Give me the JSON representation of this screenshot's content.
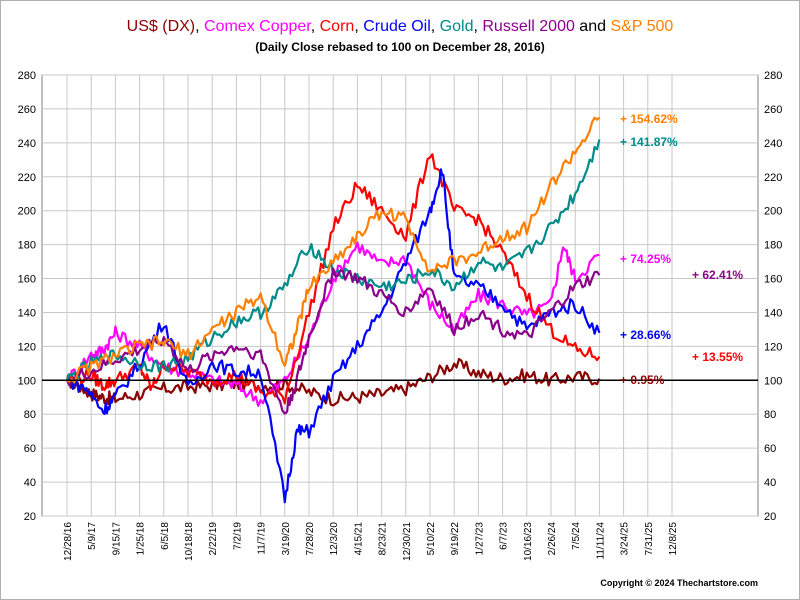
{
  "chart_data": {
    "type": "line",
    "title_parts": [
      {
        "text": "US$ (DX)",
        "color": "#8b0000"
      },
      {
        "text": ", ",
        "color": "#000000"
      },
      {
        "text": "Comex Copper",
        "color": "#ff00ff"
      },
      {
        "text": ", ",
        "color": "#000000"
      },
      {
        "text": "Corn",
        "color": "#ff0000"
      },
      {
        "text": ", ",
        "color": "#000000"
      },
      {
        "text": "Crude Oil",
        "color": "#0000ff"
      },
      {
        "text": ", ",
        "color": "#000000"
      },
      {
        "text": "Gold",
        "color": "#008b8b"
      },
      {
        "text": ", ",
        "color": "#000000"
      },
      {
        "text": "Russell 2000",
        "color": "#8b008b"
      },
      {
        "text": " and ",
        "color": "#000000"
      },
      {
        "text": "S&P 500",
        "color": "#ff7f00"
      }
    ],
    "subtitle": "(Daily Close rebased to 100 on December 28, 2016)",
    "copyright": "Copyright © 2024 Thechartstore.com",
    "ylim": [
      20,
      280
    ],
    "yticks": [
      20,
      40,
      60,
      80,
      100,
      120,
      140,
      160,
      180,
      200,
      220,
      240,
      260,
      280
    ],
    "reference_line": 100,
    "grid": true,
    "x_tick_labels": [
      "12/28/16",
      "5/9/17",
      "9/15/17",
      "1/25/18",
      "6/5/18",
      "10/18/18",
      "2/22/19",
      "7/2/19",
      "11/7/19",
      "3/19/20",
      "7/28/20",
      "12/3/20",
      "4/15/21",
      "8/23/21",
      "12/30/21",
      "5/10/22",
      "9/19/22",
      "1/27/23",
      "6/7/23",
      "10/16/23",
      "2/26/24",
      "7/5/24",
      "11/11/24",
      "3/24/25",
      "7/31/25",
      "12/8/25"
    ],
    "series": [
      {
        "name": "US$ (DX)",
        "color": "#8b0000",
        "end_label": "+ 0.95%",
        "points": [
          [
            0,
            100
          ],
          [
            0.5,
            97
          ],
          [
            1,
            92
          ],
          [
            1.5,
            90
          ],
          [
            2,
            89
          ],
          [
            3,
            92
          ],
          [
            4,
            95
          ],
          [
            5,
            96
          ],
          [
            6,
            97
          ],
          [
            7,
            98
          ],
          [
            8,
            97
          ],
          [
            9,
            98
          ],
          [
            10,
            93
          ],
          [
            11,
            89
          ],
          [
            12,
            90
          ],
          [
            13,
            92
          ],
          [
            14,
            95
          ],
          [
            15,
            102
          ],
          [
            16,
            110
          ],
          [
            17,
            104
          ],
          [
            18,
            101
          ],
          [
            19,
            103
          ],
          [
            20,
            100
          ],
          [
            21,
            102
          ],
          [
            22,
            101
          ]
        ]
      },
      {
        "name": "Comex Copper",
        "color": "#ff00ff",
        "end_label": "+ 74.25%",
        "points": [
          [
            0,
            100
          ],
          [
            1,
            115
          ],
          [
            1.5,
            118
          ],
          [
            2,
            128
          ],
          [
            3,
            120
          ],
          [
            4,
            108
          ],
          [
            5,
            105
          ],
          [
            6,
            100
          ],
          [
            7,
            97
          ],
          [
            8,
            88
          ],
          [
            9,
            100
          ],
          [
            10,
            125
          ],
          [
            11,
            160
          ],
          [
            12,
            180
          ],
          [
            13,
            168
          ],
          [
            14,
            172
          ],
          [
            15,
            145
          ],
          [
            16,
            130
          ],
          [
            17,
            150
          ],
          [
            18,
            145
          ],
          [
            19,
            138
          ],
          [
            20,
            145
          ],
          [
            20.5,
            180
          ],
          [
            21,
            160
          ],
          [
            22,
            174
          ]
        ]
      },
      {
        "name": "Corn",
        "color": "#ff0000",
        "end_label": "+ 13.55%",
        "points": [
          [
            0,
            100
          ],
          [
            1,
            103
          ],
          [
            1.5,
            97
          ],
          [
            2,
            100
          ],
          [
            3,
            108
          ],
          [
            3.5,
            95
          ],
          [
            4,
            110
          ],
          [
            5,
            105
          ],
          [
            6,
            100
          ],
          [
            7,
            103
          ],
          [
            8,
            93
          ],
          [
            9,
            90
          ],
          [
            10,
            140
          ],
          [
            11,
            190
          ],
          [
            12,
            215
          ],
          [
            13,
            200
          ],
          [
            14,
            185
          ],
          [
            15,
            235
          ],
          [
            16,
            200
          ],
          [
            17,
            195
          ],
          [
            18,
            175
          ],
          [
            19,
            150
          ],
          [
            20,
            130
          ],
          [
            21,
            118
          ],
          [
            22,
            114
          ]
        ]
      },
      {
        "name": "Crude Oil",
        "color": "#0000ff",
        "end_label": "+ 28.66%",
        "points": [
          [
            0,
            100
          ],
          [
            0.8,
            95
          ],
          [
            1.5,
            82
          ],
          [
            2,
            90
          ],
          [
            3,
            110
          ],
          [
            4,
            135
          ],
          [
            5,
            95
          ],
          [
            6,
            110
          ],
          [
            7,
            105
          ],
          [
            8,
            105
          ],
          [
            9,
            30
          ],
          [
            9.5,
            70
          ],
          [
            10,
            70
          ],
          [
            11,
            100
          ],
          [
            12,
            120
          ],
          [
            13,
            140
          ],
          [
            14,
            170
          ],
          [
            15,
            200
          ],
          [
            15.5,
            225
          ],
          [
            16,
            160
          ],
          [
            17,
            155
          ],
          [
            18,
            145
          ],
          [
            19,
            130
          ],
          [
            20,
            140
          ],
          [
            21,
            145
          ],
          [
            22,
            128
          ]
        ]
      },
      {
        "name": "Gold",
        "color": "#008b8b",
        "end_label": "+ 141.87%",
        "points": [
          [
            0,
            100
          ],
          [
            1,
            110
          ],
          [
            2,
            115
          ],
          [
            3,
            110
          ],
          [
            4,
            108
          ],
          [
            5,
            113
          ],
          [
            6,
            125
          ],
          [
            7,
            135
          ],
          [
            8,
            140
          ],
          [
            9,
            155
          ],
          [
            10,
            180
          ],
          [
            11,
            165
          ],
          [
            12,
            160
          ],
          [
            13,
            155
          ],
          [
            14,
            158
          ],
          [
            15,
            165
          ],
          [
            16,
            155
          ],
          [
            17,
            170
          ],
          [
            18,
            165
          ],
          [
            19,
            175
          ],
          [
            20,
            190
          ],
          [
            21,
            210
          ],
          [
            22,
            242
          ]
        ]
      },
      {
        "name": "Russell 2000",
        "color": "#8b008b",
        "end_label": "+ 62.41%",
        "points": [
          [
            0,
            100
          ],
          [
            1,
            105
          ],
          [
            2,
            112
          ],
          [
            3,
            118
          ],
          [
            4,
            125
          ],
          [
            5,
            105
          ],
          [
            6,
            115
          ],
          [
            7,
            120
          ],
          [
            8,
            115
          ],
          [
            9,
            80
          ],
          [
            9.5,
            100
          ],
          [
            10,
            125
          ],
          [
            11,
            165
          ],
          [
            12,
            160
          ],
          [
            13,
            150
          ],
          [
            14,
            140
          ],
          [
            15,
            155
          ],
          [
            16,
            130
          ],
          [
            17,
            140
          ],
          [
            18,
            130
          ],
          [
            19,
            125
          ],
          [
            20,
            140
          ],
          [
            21,
            155
          ],
          [
            22,
            162
          ]
        ]
      },
      {
        "name": "S&P 500",
        "color": "#ff7f00",
        "end_label": "+ 154.62%",
        "points": [
          [
            0,
            100
          ],
          [
            1,
            108
          ],
          [
            2,
            115
          ],
          [
            3,
            120
          ],
          [
            4,
            123
          ],
          [
            5,
            115
          ],
          [
            6,
            130
          ],
          [
            7,
            140
          ],
          [
            8,
            150
          ],
          [
            9,
            110
          ],
          [
            9.5,
            130
          ],
          [
            10,
            155
          ],
          [
            11,
            170
          ],
          [
            12,
            185
          ],
          [
            13,
            200
          ],
          [
            14,
            195
          ],
          [
            15,
            165
          ],
          [
            16,
            170
          ],
          [
            17,
            175
          ],
          [
            18,
            185
          ],
          [
            19,
            190
          ],
          [
            20,
            215
          ],
          [
            21,
            235
          ],
          [
            22,
            255
          ]
        ]
      }
    ]
  }
}
